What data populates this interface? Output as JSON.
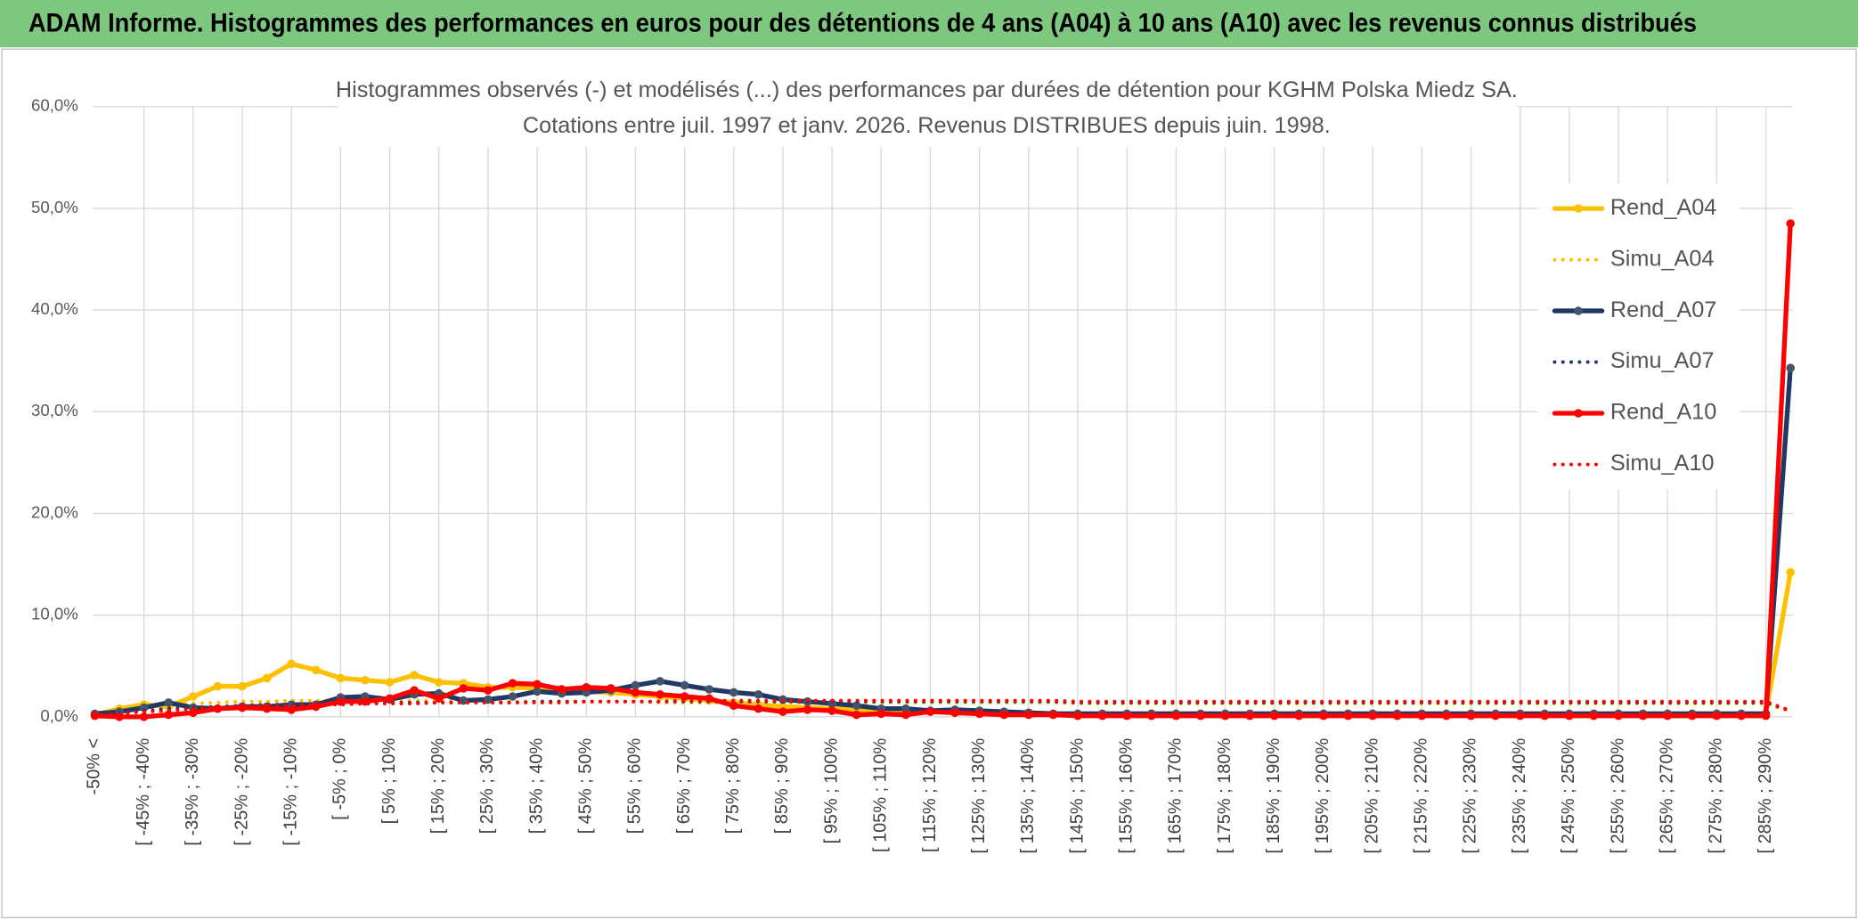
{
  "header": {
    "title": "ADAM Informe. Histogrammes des performances en euros pour des détentions de 4 ans (A04) à 10 ans (A10) avec les revenus connus distribués"
  },
  "chart_data": {
    "type": "line",
    "title": "Histogrammes observés (-) et modélisés (...) des performances par durées de détention pour KGHM Polska Miedz SA.",
    "subtitle": "Cotations entre juil. 1997 et janv. 2026. Revenus DISTRIBUES depuis juin. 1998.",
    "grid": true,
    "legend_position": "right",
    "ylim": [
      0,
      60
    ],
    "yticks": [
      {
        "value": 0,
        "label": "0,0%"
      },
      {
        "value": 10,
        "label": "10,0%"
      },
      {
        "value": 20,
        "label": "20,0%"
      },
      {
        "value": 30,
        "label": "30,0%"
      },
      {
        "value": 40,
        "label": "40,0%"
      },
      {
        "value": 50,
        "label": "50,0%"
      },
      {
        "value": 60,
        "label": "60,0%"
      }
    ],
    "categories": [
      "-50% <",
      null,
      "[ -45% ; -40%",
      null,
      "[ -35% ; -30%",
      null,
      "[ -25% ; -20%",
      null,
      "[ -15% ; -10%",
      null,
      "[ -5% ; 0%",
      null,
      "[ 5% ; 10%",
      null,
      "[ 15% ; 20%",
      null,
      "[ 25% ; 30%",
      null,
      "[ 35% ; 40%",
      null,
      "[ 45% ; 50%",
      null,
      "[ 55% ; 60%",
      null,
      "[ 65% ; 70%",
      null,
      "[ 75% ; 80%",
      null,
      "[ 85% ; 90%",
      null,
      "[ 95% ; 100%",
      null,
      "[ 105% ; 110%",
      null,
      "[ 115% ; 120%",
      null,
      "[ 125% ; 130%",
      null,
      "[ 135% ; 140%",
      null,
      "[ 145% ; 150%",
      null,
      "[ 155% ; 160%",
      null,
      "[ 165% ; 170%",
      null,
      "[ 175% ; 180%",
      null,
      "[ 185% ; 190%",
      null,
      "[ 195% ; 200%",
      null,
      "[ 205% ; 210%",
      null,
      "[ 215% ; 220%",
      null,
      "[ 225% ; 230%",
      null,
      "[ 235% ; 240%",
      null,
      "[ 245% ; 250%",
      null,
      "[ 255% ; 260%",
      null,
      "[ 265% ; 270%",
      null,
      "[ 275% ; 280%",
      null,
      "[ 285% ; 290%",
      null
    ],
    "series": [
      {
        "name": "Rend_A04",
        "color": "#ffc000",
        "style": "solid",
        "values": [
          0.2,
          0.8,
          1.2,
          1.0,
          2.0,
          3.0,
          3.0,
          3.8,
          5.2,
          4.6,
          3.8,
          3.6,
          3.4,
          4.1,
          3.4,
          3.3,
          2.9,
          2.9,
          2.8,
          2.7,
          2.5,
          2.4,
          2.2,
          2.0,
          1.8,
          1.6,
          1.4,
          1.2,
          1.0,
          0.9,
          0.8,
          0.7,
          0.6,
          0.6,
          0.5,
          0.5,
          0.4,
          0.4,
          0.4,
          0.3,
          0.3,
          0.3,
          0.3,
          0.3,
          0.3,
          0.3,
          0.3,
          0.3,
          0.3,
          0.3,
          0.3,
          0.3,
          0.3,
          0.3,
          0.3,
          0.3,
          0.3,
          0.3,
          0.3,
          0.3,
          0.3,
          0.3,
          0.3,
          0.3,
          0.3,
          0.3,
          0.3,
          0.3,
          0.3,
          14.2
        ]
      },
      {
        "name": "Simu_A04",
        "color": "#ffc000",
        "style": "dotted",
        "values": [
          0.3,
          0.6,
          0.9,
          1.1,
          1.3,
          1.4,
          1.5,
          1.5,
          1.6,
          1.6,
          1.6,
          1.6,
          1.6,
          1.6,
          1.6,
          1.5,
          1.5,
          1.5,
          1.5,
          1.5,
          1.5,
          1.5,
          1.5,
          1.4,
          1.4,
          1.4,
          1.4,
          1.4,
          1.4,
          1.4,
          1.4,
          1.4,
          1.4,
          1.4,
          1.4,
          1.4,
          1.4,
          1.4,
          1.4,
          1.4,
          1.3,
          1.3,
          1.3,
          1.3,
          1.3,
          1.3,
          1.3,
          1.3,
          1.3,
          1.3,
          1.3,
          1.3,
          1.3,
          1.3,
          1.3,
          1.3,
          1.3,
          1.3,
          1.3,
          1.3,
          1.3,
          1.3,
          1.3,
          1.3,
          1.3,
          1.3,
          1.3,
          1.3,
          1.3,
          0.5
        ]
      },
      {
        "name": "Rend_A07",
        "color": "#1f3864",
        "style": "solid",
        "values": [
          0.3,
          0.5,
          0.9,
          1.4,
          0.9,
          0.8,
          1.0,
          1.0,
          1.2,
          1.2,
          1.9,
          2.0,
          1.7,
          2.2,
          2.3,
          1.6,
          1.7,
          2.0,
          2.5,
          2.3,
          2.4,
          2.6,
          3.1,
          3.5,
          3.1,
          2.7,
          2.4,
          2.2,
          1.7,
          1.5,
          1.3,
          1.1,
          0.8,
          0.8,
          0.6,
          0.7,
          0.6,
          0.5,
          0.4,
          0.3,
          0.3,
          0.3,
          0.3,
          0.3,
          0.3,
          0.3,
          0.3,
          0.3,
          0.3,
          0.3,
          0.3,
          0.3,
          0.3,
          0.3,
          0.3,
          0.3,
          0.3,
          0.3,
          0.3,
          0.3,
          0.3,
          0.3,
          0.3,
          0.3,
          0.3,
          0.3,
          0.3,
          0.3,
          0.3,
          34.3
        ]
      },
      {
        "name": "Simu_A07",
        "color": "#1f3864",
        "style": "dotted",
        "values": [
          0.2,
          0.4,
          0.6,
          0.8,
          0.9,
          1.0,
          1.1,
          1.2,
          1.2,
          1.3,
          1.3,
          1.3,
          1.4,
          1.4,
          1.4,
          1.4,
          1.4,
          1.4,
          1.5,
          1.5,
          1.5,
          1.5,
          1.5,
          1.5,
          1.5,
          1.5,
          1.5,
          1.5,
          1.5,
          1.5,
          1.5,
          1.5,
          1.5,
          1.5,
          1.5,
          1.5,
          1.5,
          1.5,
          1.5,
          1.5,
          1.4,
          1.4,
          1.4,
          1.4,
          1.4,
          1.4,
          1.4,
          1.4,
          1.4,
          1.4,
          1.4,
          1.4,
          1.4,
          1.4,
          1.4,
          1.4,
          1.4,
          1.4,
          1.4,
          1.4,
          1.4,
          1.4,
          1.4,
          1.4,
          1.4,
          1.4,
          1.4,
          1.4,
          1.4,
          0.6
        ]
      },
      {
        "name": "Rend_A10",
        "color": "#ff0000",
        "style": "solid",
        "values": [
          0.1,
          0.0,
          0.0,
          0.2,
          0.4,
          0.8,
          0.9,
          0.8,
          0.7,
          1.0,
          1.5,
          1.5,
          1.8,
          2.6,
          1.8,
          2.8,
          2.6,
          3.3,
          3.2,
          2.7,
          2.9,
          2.8,
          2.4,
          2.2,
          2.0,
          1.8,
          1.1,
          0.8,
          0.5,
          0.7,
          0.6,
          0.2,
          0.3,
          0.2,
          0.5,
          0.4,
          0.3,
          0.2,
          0.2,
          0.2,
          0.1,
          0.1,
          0.1,
          0.1,
          0.1,
          0.1,
          0.1,
          0.1,
          0.1,
          0.1,
          0.1,
          0.1,
          0.1,
          0.1,
          0.1,
          0.1,
          0.1,
          0.1,
          0.1,
          0.1,
          0.1,
          0.1,
          0.1,
          0.1,
          0.1,
          0.1,
          0.1,
          0.1,
          0.1,
          48.5
        ]
      },
      {
        "name": "Simu_A10",
        "color": "#ff0000",
        "style": "dotted",
        "values": [
          0.1,
          0.3,
          0.5,
          0.6,
          0.8,
          0.9,
          1.0,
          1.1,
          1.1,
          1.2,
          1.2,
          1.3,
          1.3,
          1.3,
          1.4,
          1.4,
          1.4,
          1.4,
          1.4,
          1.4,
          1.5,
          1.5,
          1.5,
          1.5,
          1.6,
          1.6,
          1.6,
          1.6,
          1.6,
          1.6,
          1.6,
          1.6,
          1.6,
          1.6,
          1.6,
          1.6,
          1.6,
          1.6,
          1.6,
          1.6,
          1.5,
          1.5,
          1.5,
          1.5,
          1.5,
          1.5,
          1.5,
          1.5,
          1.5,
          1.5,
          1.5,
          1.5,
          1.5,
          1.5,
          1.5,
          1.5,
          1.5,
          1.5,
          1.5,
          1.5,
          1.5,
          1.5,
          1.5,
          1.5,
          1.5,
          1.5,
          1.5,
          1.5,
          1.5,
          0.6
        ]
      }
    ]
  }
}
